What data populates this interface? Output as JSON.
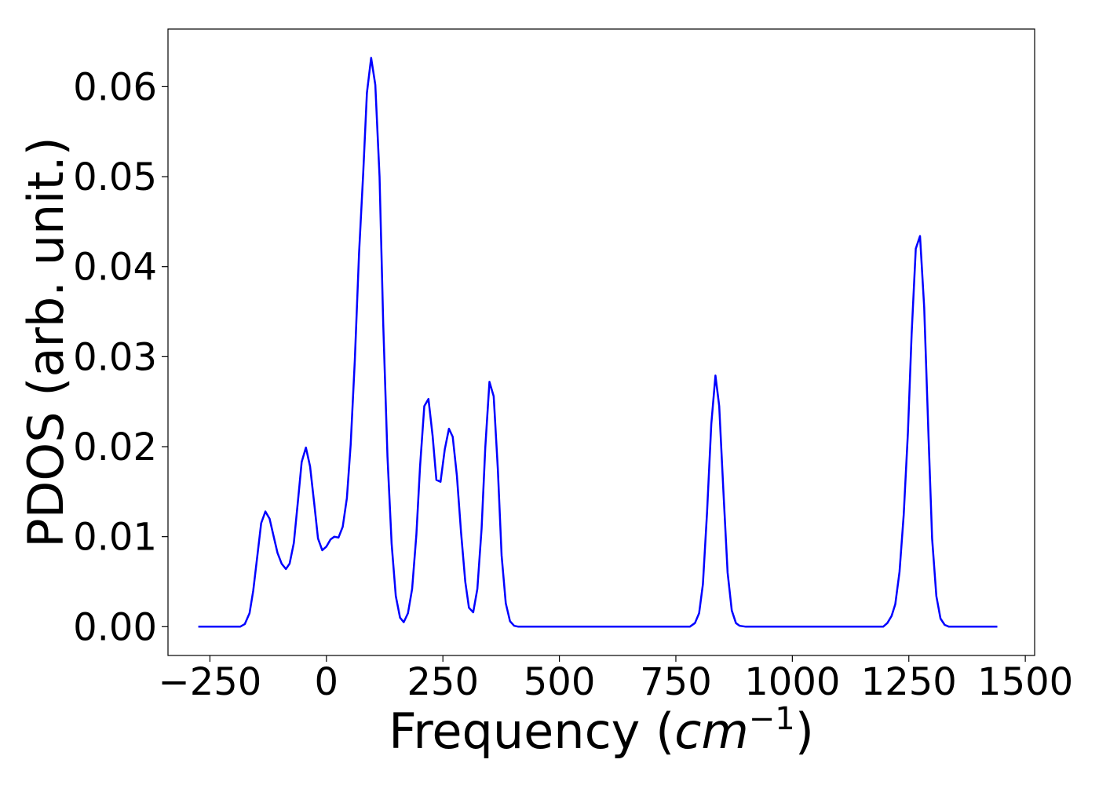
{
  "chart_data": {
    "type": "line",
    "title": "",
    "xlabel_main": "Frequency (",
    "xlabel_unit": "cm",
    "xlabel_exp": "−1",
    "xlabel_close": ")",
    "ylabel": "PDOS (arb. unit.)",
    "xlim": [
      -340,
      1520
    ],
    "ylim": [
      -0.0032,
      0.0664
    ],
    "xticks": [
      -250,
      0,
      250,
      500,
      750,
      1000,
      1250,
      1500
    ],
    "xtick_labels": [
      "−250",
      "0",
      "250",
      "500",
      "750",
      "1000",
      "1250",
      "1500"
    ],
    "yticks": [
      0.0,
      0.01,
      0.02,
      0.03,
      0.04,
      0.05,
      0.06
    ],
    "ytick_labels": [
      "0.00",
      "0.01",
      "0.02",
      "0.03",
      "0.04",
      "0.05",
      "0.06"
    ],
    "grid": false,
    "legend": false,
    "colors": {
      "line": "#0000ff",
      "axes": "#000000"
    },
    "series": [
      {
        "x": [
          -275,
          -185,
          -175,
          -165,
          -157,
          -148,
          -140,
          -131,
          -122,
          -113,
          -105,
          -96,
          -87,
          -79,
          -70,
          -61,
          -53,
          -44,
          -35,
          -26,
          -18,
          -9,
          0,
          9,
          17,
          26,
          35,
          44,
          52,
          61,
          70,
          79,
          87,
          96,
          105,
          114,
          122,
          131,
          140,
          149,
          158,
          166,
          175,
          184,
          193,
          201,
          210,
          219,
          228,
          236,
          245,
          254,
          263,
          271,
          280,
          289,
          298,
          306,
          315,
          324,
          333,
          341,
          350,
          359,
          368,
          376,
          385,
          394,
          403,
          412,
          420,
          780,
          791,
          800,
          808,
          817,
          826,
          835,
          843,
          852,
          861,
          870,
          879,
          887,
          900,
          1195,
          1204,
          1213,
          1221,
          1230,
          1239,
          1248,
          1256,
          1265,
          1274,
          1283,
          1292,
          1300,
          1309,
          1318,
          1327,
          1336,
          1345,
          1440
        ],
        "y": [
          0.0,
          0.0,
          0.0003,
          0.0015,
          0.004,
          0.008,
          0.0115,
          0.0128,
          0.012,
          0.01,
          0.0082,
          0.007,
          0.0064,
          0.007,
          0.0093,
          0.014,
          0.0183,
          0.0199,
          0.0178,
          0.0136,
          0.0098,
          0.0085,
          0.0089,
          0.0097,
          0.01,
          0.0099,
          0.0111,
          0.0143,
          0.0202,
          0.0296,
          0.0415,
          0.0504,
          0.0593,
          0.0632,
          0.0602,
          0.05,
          0.0336,
          0.0189,
          0.0092,
          0.0034,
          0.001,
          0.0005,
          0.0015,
          0.0042,
          0.0102,
          0.0178,
          0.0245,
          0.0253,
          0.0212,
          0.0163,
          0.0161,
          0.0197,
          0.022,
          0.0211,
          0.0168,
          0.0105,
          0.005,
          0.0021,
          0.0016,
          0.0042,
          0.0109,
          0.0199,
          0.0272,
          0.0256,
          0.0175,
          0.0079,
          0.0026,
          0.0006,
          0.0001,
          0.0,
          0.0,
          0.0,
          0.0004,
          0.0015,
          0.0047,
          0.0127,
          0.0225,
          0.0279,
          0.0245,
          0.0151,
          0.006,
          0.0018,
          0.0004,
          0.0001,
          0.0,
          0.0,
          0.0004,
          0.0012,
          0.0025,
          0.0061,
          0.0124,
          0.0216,
          0.0325,
          0.042,
          0.0434,
          0.0355,
          0.0215,
          0.0098,
          0.0034,
          0.0009,
          0.0002,
          0.0,
          0.0,
          0.0
        ]
      }
    ]
  }
}
